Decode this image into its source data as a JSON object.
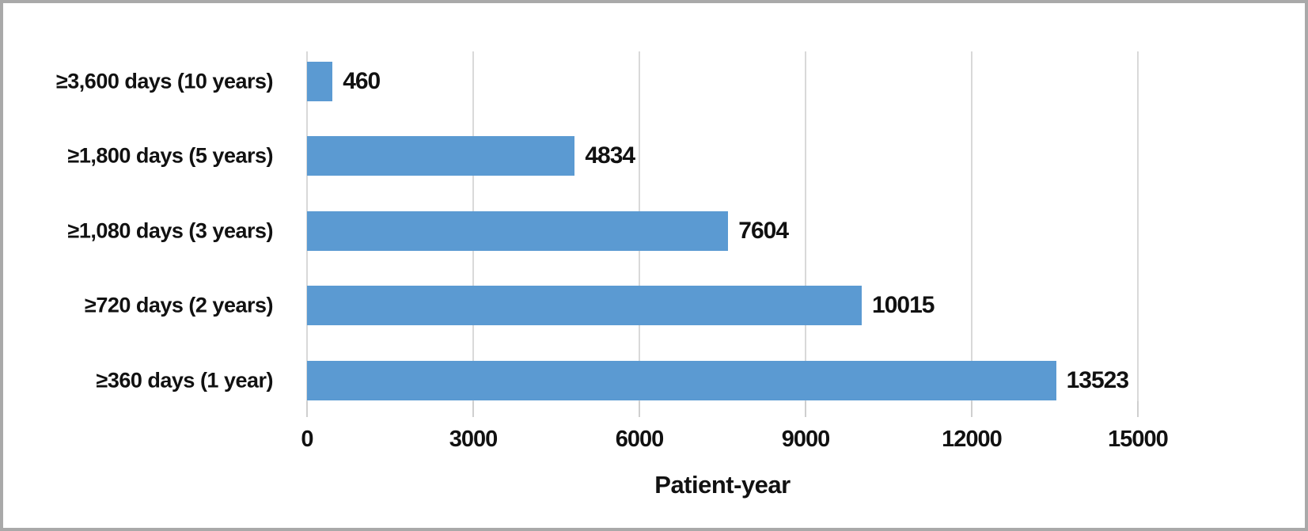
{
  "chart_data": {
    "type": "bar",
    "orientation": "horizontal",
    "categories": [
      "≥3,600 days (10 years)",
      "≥1,800 days (5 years)",
      "≥1,080 days (3 years)",
      "≥720 days (2 years)",
      "≥360 days (1 year)"
    ],
    "values": [
      460,
      4834,
      7604,
      10015,
      13523
    ],
    "value_labels": [
      "460",
      "4834",
      "7604",
      "10015",
      "13523"
    ],
    "xlabel": "Patient-year",
    "ylabel": "",
    "xlim": [
      0,
      15000
    ],
    "xticks": [
      0,
      3000,
      6000,
      9000,
      12000,
      15000
    ],
    "xtick_labels": [
      "0",
      "3000",
      "6000",
      "9000",
      "12000",
      "15000"
    ],
    "grid": true,
    "grid_axis": "x",
    "legend": false,
    "colors": {
      "bar": "#5b9ad2",
      "grid": "#d9d9d9",
      "tick": "#cfcfcf",
      "text": "#111111",
      "frame_border": "#a9a9a9",
      "background": "#ffffff"
    }
  }
}
